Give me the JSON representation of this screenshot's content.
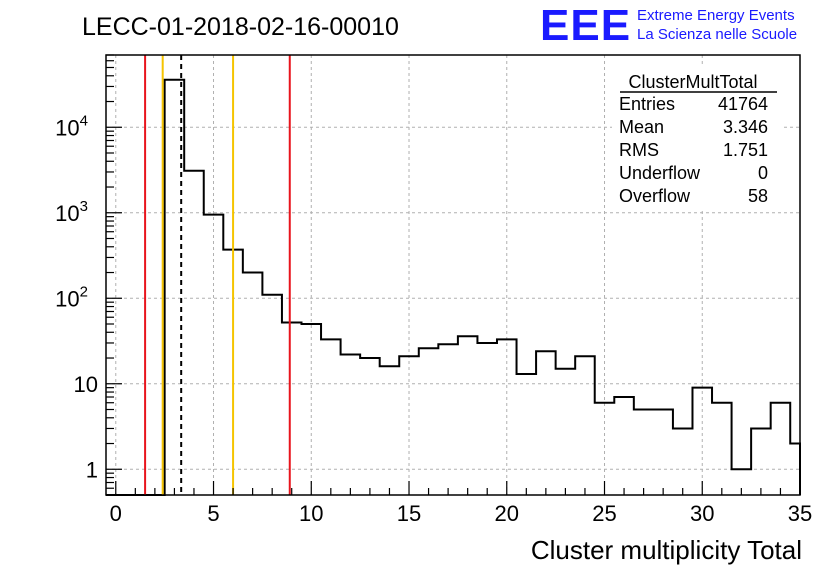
{
  "header": {
    "title": "LECC-01-2018-02-16-00010",
    "logo_text": "EEE",
    "logo_line1": "Extreme Energy Events",
    "logo_line2": "La Scienza nelle Scuole"
  },
  "stats_box": {
    "title": "ClusterMultTotal",
    "rows": [
      {
        "label": "Entries",
        "value": "41764"
      },
      {
        "label": "Mean",
        "value": "3.346"
      },
      {
        "label": "RMS",
        "value": "1.751"
      },
      {
        "label": "Underflow",
        "value": "0"
      },
      {
        "label": "Overflow",
        "value": "58"
      }
    ]
  },
  "colors": {
    "red_line": "#e8141c",
    "yellow_line": "#f5c400",
    "logo": "#1a1aff",
    "grid": "#b0b0b0"
  },
  "chart_data": {
    "type": "bar",
    "title": "LECC-01-2018-02-16-00010",
    "xlabel": "Cluster multiplicity Total",
    "ylabel": "",
    "xlim": [
      -0.5,
      35
    ],
    "ylim": [
      0.5,
      70000
    ],
    "yscale": "log",
    "grid": true,
    "bin_width": 1,
    "bin_edges_start": -0.5,
    "values": [
      0,
      0,
      0,
      36000,
      3100,
      950,
      370,
      200,
      110,
      52,
      50,
      33,
      22,
      20,
      16,
      21,
      26,
      29,
      36,
      30,
      33,
      13,
      24,
      15,
      21,
      6,
      7,
      5,
      5,
      3,
      9,
      6,
      1,
      3,
      6,
      2
    ],
    "xticks": [
      "0",
      "5",
      "10",
      "15",
      "20",
      "25",
      "30",
      "35"
    ],
    "xtick_values": [
      0,
      5,
      10,
      15,
      20,
      25,
      30,
      35
    ],
    "yticks": [
      "1",
      "10",
      "10",
      "10",
      "10"
    ],
    "ytick_exponents": [
      "",
      "",
      "2",
      "3",
      "4"
    ],
    "ytick_values": [
      1,
      10,
      100,
      1000,
      10000
    ],
    "vlines": [
      {
        "x": 1.5,
        "color": "red"
      },
      {
        "x": 2.4,
        "color": "yellow"
      },
      {
        "x": 3.346,
        "color": "black-dashed"
      },
      {
        "x": 6.0,
        "color": "yellow"
      },
      {
        "x": 8.9,
        "color": "red"
      }
    ]
  }
}
